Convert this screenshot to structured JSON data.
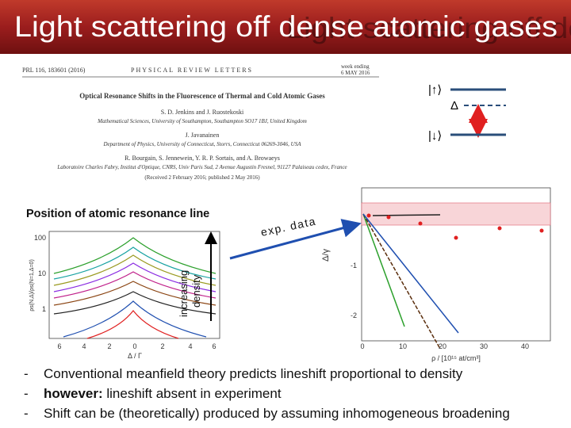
{
  "header": {
    "title": "Light scattering off dense atomic gases"
  },
  "paper": {
    "journal_ref": "PRL 116, 183601 (2016)",
    "journal": "PHYSICAL REVIEW LETTERS",
    "week_line1": "week ending",
    "week_line2": "6 MAY 2016",
    "title": "Optical Resonance Shifts in the Fluorescence of Thermal and Cold Atomic Gases",
    "authors_1": "S. D. Jenkins and J. Ruostekoski",
    "affiliation_1": "Mathematical Sciences, University of Southampton, Southampton SO17 1BJ, United Kingdom",
    "authors_2": "J. Javanainen",
    "affiliation_2": "Department of Physics, University of Connecticut, Storrs, Connecticut 06269-3046, USA",
    "authors_3": "R. Bourgain, S. Jennewein, Y. R. P. Sortais, and A. Browaeys",
    "affiliation_3": "Laboratoire Charles Fabry, Institut d'Optique, CNRS, Univ Paris Sud, 2 Avenue Augustin Fresnel, 91127 Palaiseau cedex, France",
    "received": "(Received 2 February 2016; published 2 May 2016)"
  },
  "level_diagram": {
    "upper": "|↑⟩",
    "lower": "|↓⟩",
    "detuning": "Δ"
  },
  "left_panel": {
    "title": "Position of atomic resonance line",
    "annotation_line1": "increasing",
    "annotation_line2": "density",
    "y_label": "ρs(N,Δ)/ρs(N=1,Δ=0)",
    "y_ticks": [
      "100",
      "10",
      "1"
    ],
    "x_ticks": [
      "6",
      "4",
      "2",
      "0",
      "2",
      "4",
      "6"
    ],
    "x_label": "Δ / Γ"
  },
  "right_panel": {
    "annotation": "exp. data",
    "y_label": "Δ/γ",
    "y_ticks": [
      "-1",
      "-2"
    ],
    "x_ticks": [
      "0",
      "10",
      "20",
      "30",
      "40"
    ],
    "x_label": "ρ / [10¹⁵ at/cm³]"
  },
  "bullets": [
    {
      "marker": "-",
      "text": "Conventional meanfield theory predicts lineshift proportional to density"
    },
    {
      "marker": "-",
      "bold": "however:",
      "text": " lineshift absent in experiment"
    },
    {
      "marker": "-",
      "text": "Shift can be (theoretically) produced by assuming inhomogeneous broadening"
    }
  ]
}
